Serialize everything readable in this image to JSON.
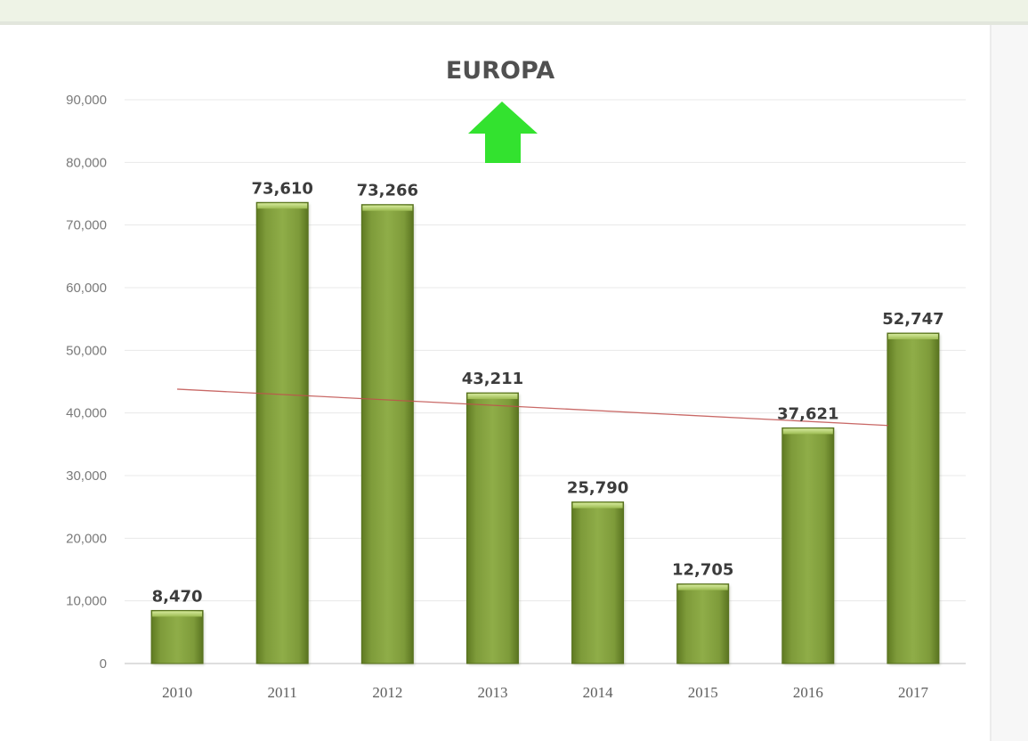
{
  "chart_data": {
    "type": "bar",
    "title": "EUROPA",
    "xlabel": "",
    "ylabel": "",
    "categories": [
      "2010",
      "2011",
      "2012",
      "2013",
      "2014",
      "2015",
      "2016",
      "2017"
    ],
    "values": [
      8470,
      73610,
      73266,
      43211,
      25790,
      12705,
      37621,
      52747
    ],
    "value_labels": [
      "8,470",
      "73,610",
      "73,266",
      "43,211",
      "25,790",
      "12,705",
      "37,621",
      "52,747"
    ],
    "ylim": [
      0,
      90000
    ],
    "yticks": [
      0,
      10000,
      20000,
      30000,
      40000,
      50000,
      60000,
      70000,
      80000,
      90000
    ],
    "ytick_labels": [
      "0",
      "10,000",
      "20,000",
      "30,000",
      "40,000",
      "50,000",
      "60,000",
      "70,000",
      "80,000",
      "90,000"
    ],
    "grid": true,
    "legend": "none",
    "trendline": {
      "type": "linear",
      "start_value": 43800,
      "end_value": 38000
    },
    "colors": {
      "bar": "#7e9b3a",
      "bar_top": "#c5dc86",
      "trendline": "#c0504d",
      "gridline": "#e8e8e8",
      "arrow": "#33e22f"
    },
    "annotations": [
      {
        "type": "arrow-up",
        "icon": "green-up-arrow-icon",
        "color": "#33e22f"
      }
    ]
  }
}
